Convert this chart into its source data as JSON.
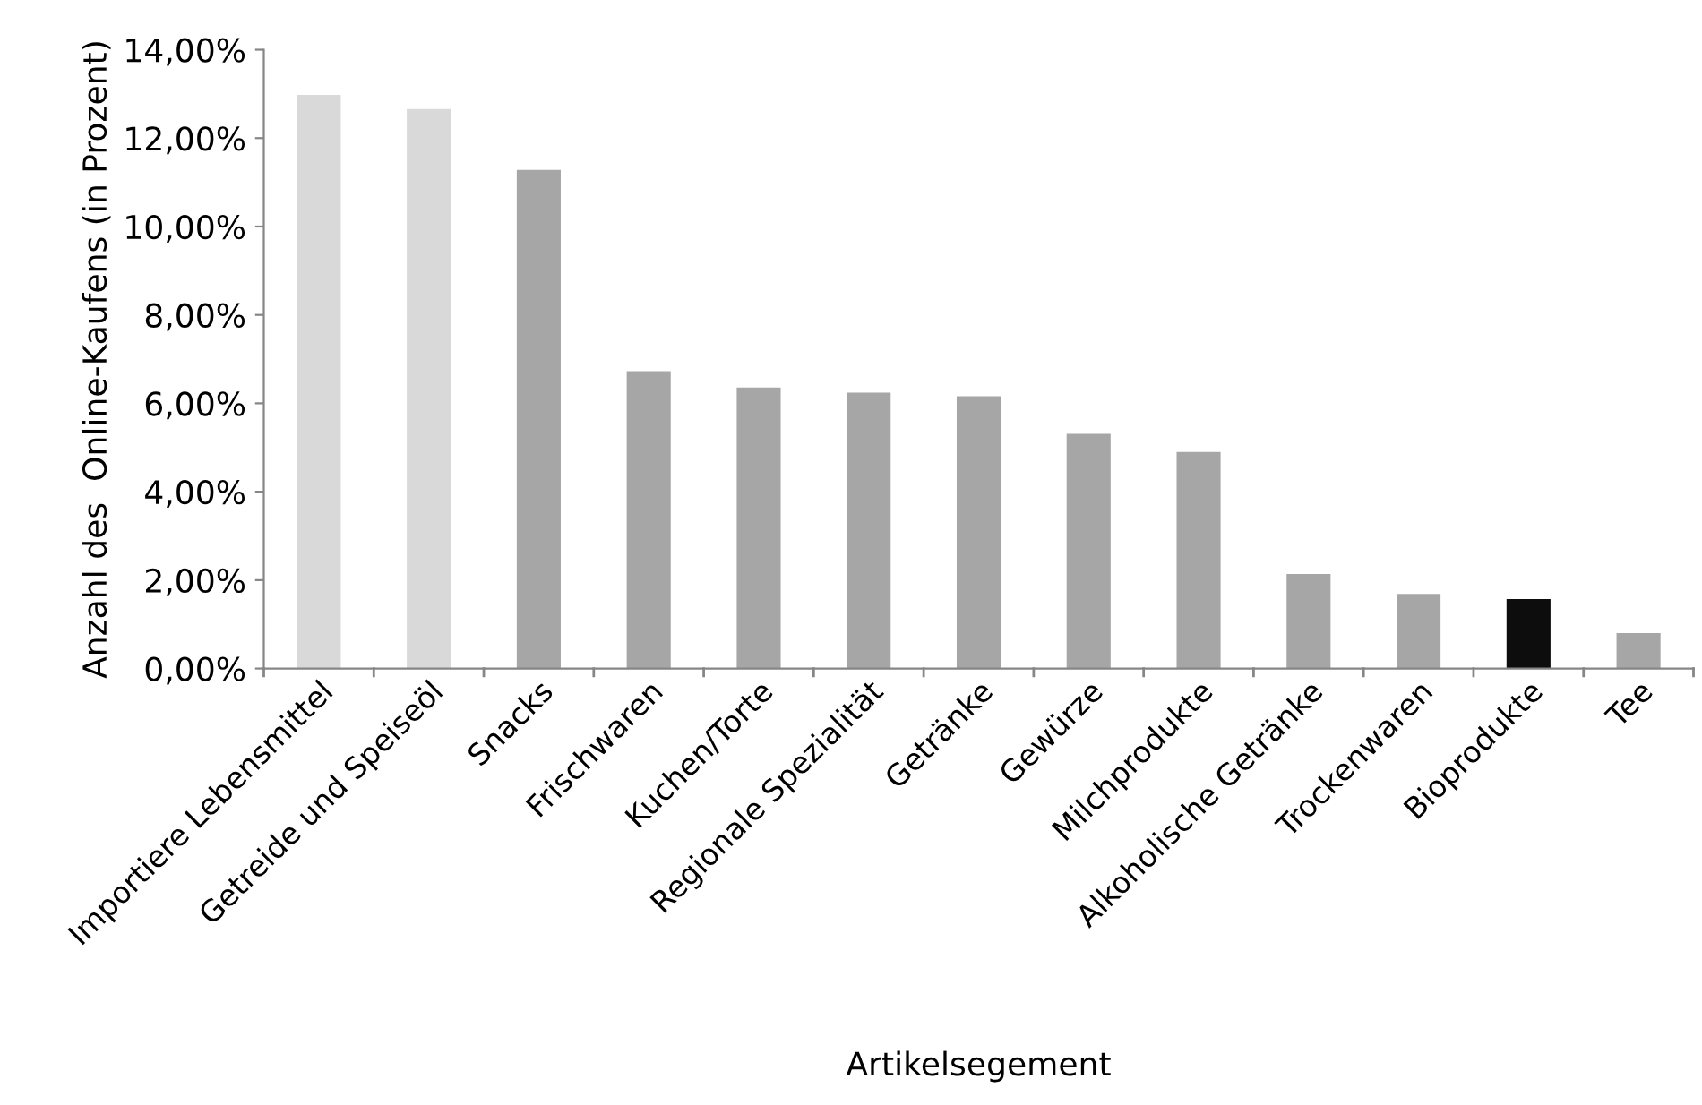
{
  "chart_data": {
    "type": "bar",
    "xlabel": "Artikelsegement",
    "ylabel": "Anzahl des  Online-Kaufens (in Prozent)",
    "categories": [
      "Importiere Lebensmittel",
      "Getreide und Speiseöl",
      "Snacks",
      "Frischwaren",
      "Kuchen/Torte",
      "Regionale Spezialität",
      "Getränke",
      "Gewürze",
      "Milchprodukte",
      "Alkoholische Getränke",
      "Trockenwaren",
      "Bioprodukte",
      "Tee"
    ],
    "values": [
      12.98,
      12.66,
      11.28,
      6.73,
      6.36,
      6.24,
      6.16,
      5.31,
      4.9,
      2.14,
      1.69,
      1.57,
      0.8
    ],
    "colors": [
      "#d9d9d9",
      "#d9d9d9",
      "#a6a6a6",
      "#a6a6a6",
      "#a6a6a6",
      "#a6a6a6",
      "#a6a6a6",
      "#a6a6a6",
      "#a6a6a6",
      "#a6a6a6",
      "#a6a6a6",
      "#0d0d0d",
      "#a6a6a6"
    ],
    "ylim": [
      0,
      14
    ],
    "yticks": [
      {
        "value": 0,
        "label": "0,00%"
      },
      {
        "value": 2,
        "label": "2,00%"
      },
      {
        "value": 4,
        "label": "4,00%"
      },
      {
        "value": 6,
        "label": "6,00%"
      },
      {
        "value": 8,
        "label": "8,00%"
      },
      {
        "value": 10,
        "label": "10,00%"
      },
      {
        "value": 12,
        "label": "12,00%"
      },
      {
        "value": 14,
        "label": "14,00%"
      }
    ],
    "grid": false,
    "legend": false
  }
}
